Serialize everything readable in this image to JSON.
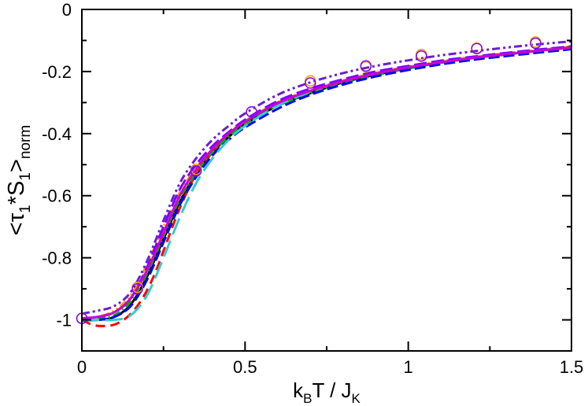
{
  "chart_data": {
    "type": "line",
    "title": "",
    "xlabel": {
      "main": "k",
      "sub1": "B",
      "mid": "T / J",
      "sub2": "K"
    },
    "ylabel": {
      "open": "<τ",
      "sub1": "1",
      "mid": "*S",
      "sub2": "1",
      "close": ">",
      "sub3": "norm"
    },
    "xlim": [
      0,
      1.5
    ],
    "ylim": [
      -1.1,
      0
    ],
    "xticks": [
      0,
      0.5,
      1,
      1.5
    ],
    "xtick_labels": [
      "0",
      "0.5",
      "1",
      "1.5"
    ],
    "yticks": [
      0,
      -0.2,
      -0.4,
      -0.6,
      -0.8,
      -1
    ],
    "ytick_labels": [
      "0",
      "-0.2",
      "-0.4",
      "-0.6",
      "-0.8",
      "-1"
    ],
    "grid": false,
    "series": [
      {
        "name": "black solid",
        "color": "#000000",
        "dash": "",
        "x": [
          0,
          0.05,
          0.1,
          0.15,
          0.2,
          0.25,
          0.3,
          0.35,
          0.4,
          0.45,
          0.5,
          0.6,
          0.7,
          0.8,
          0.9,
          1.0,
          1.1,
          1.2,
          1.3,
          1.4,
          1.5
        ],
        "y": [
          -1.0,
          -1.0,
          -0.99,
          -0.95,
          -0.86,
          -0.74,
          -0.62,
          -0.53,
          -0.46,
          -0.41,
          -0.37,
          -0.31,
          -0.27,
          -0.235,
          -0.21,
          -0.19,
          -0.17,
          -0.155,
          -0.145,
          -0.132,
          -0.122
        ]
      },
      {
        "name": "red dashed",
        "color": "#ff0000",
        "dash": "12,7",
        "x": [
          0,
          0.03,
          0.06,
          0.1,
          0.14,
          0.18,
          0.22,
          0.26,
          0.3,
          0.35,
          0.4,
          0.45,
          0.5,
          0.6,
          0.7,
          0.8,
          0.9,
          1.0,
          1.1,
          1.2,
          1.3,
          1.4,
          1.5
        ],
        "y": [
          -1.0,
          -1.015,
          -1.02,
          -1.015,
          -0.99,
          -0.94,
          -0.86,
          -0.75,
          -0.64,
          -0.53,
          -0.46,
          -0.4,
          -0.36,
          -0.3,
          -0.26,
          -0.23,
          -0.205,
          -0.185,
          -0.168,
          -0.154,
          -0.142,
          -0.13,
          -0.12
        ]
      },
      {
        "name": "green dash-dot",
        "color": "#00b000",
        "dash": "10,4,2,4",
        "x": [
          0,
          0.05,
          0.1,
          0.15,
          0.2,
          0.25,
          0.3,
          0.35,
          0.4,
          0.45,
          0.5,
          0.6,
          0.7,
          0.8,
          0.9,
          1.0,
          1.1,
          1.2,
          1.3,
          1.4,
          1.5
        ],
        "y": [
          -0.995,
          -0.995,
          -0.985,
          -0.94,
          -0.85,
          -0.73,
          -0.61,
          -0.525,
          -0.46,
          -0.41,
          -0.37,
          -0.31,
          -0.27,
          -0.238,
          -0.212,
          -0.19,
          -0.172,
          -0.157,
          -0.145,
          -0.133,
          -0.123
        ]
      },
      {
        "name": "blue long-dash",
        "color": "#0000ff",
        "dash": "14,5",
        "x": [
          0,
          0.05,
          0.1,
          0.15,
          0.2,
          0.25,
          0.3,
          0.35,
          0.4,
          0.45,
          0.5,
          0.6,
          0.7,
          0.8,
          0.9,
          1.0,
          1.1,
          1.2,
          1.3,
          1.4,
          1.5
        ],
        "y": [
          -1.0,
          -1.0,
          -0.99,
          -0.955,
          -0.87,
          -0.75,
          -0.63,
          -0.54,
          -0.47,
          -0.42,
          -0.38,
          -0.32,
          -0.275,
          -0.242,
          -0.216,
          -0.195,
          -0.177,
          -0.162,
          -0.15,
          -0.139,
          -0.128
        ]
      },
      {
        "name": "orange dash-dot-dot",
        "color": "#ff9900",
        "dash": "10,4,2,4,2,4",
        "x": [
          0,
          0.05,
          0.1,
          0.15,
          0.2,
          0.25,
          0.3,
          0.35,
          0.4,
          0.45,
          0.5,
          0.6,
          0.7,
          0.8,
          0.9,
          1.0,
          1.1,
          1.2,
          1.3,
          1.4,
          1.5
        ],
        "y": [
          -0.995,
          -0.99,
          -0.97,
          -0.92,
          -0.82,
          -0.7,
          -0.59,
          -0.51,
          -0.45,
          -0.4,
          -0.36,
          -0.3,
          -0.26,
          -0.228,
          -0.204,
          -0.184,
          -0.167,
          -0.153,
          -0.141,
          -0.13,
          -0.12
        ]
      },
      {
        "name": "purple dashed",
        "color": "#7f00ff",
        "dash": "16,6",
        "x": [
          0,
          0.05,
          0.1,
          0.15,
          0.2,
          0.25,
          0.3,
          0.35,
          0.4,
          0.45,
          0.5,
          0.6,
          0.7,
          0.8,
          0.9,
          1.0,
          1.1,
          1.2,
          1.3,
          1.4,
          1.5
        ],
        "y": [
          -0.995,
          -0.99,
          -0.975,
          -0.93,
          -0.83,
          -0.7,
          -0.58,
          -0.5,
          -0.44,
          -0.395,
          -0.355,
          -0.295,
          -0.255,
          -0.225,
          -0.2,
          -0.182,
          -0.165,
          -0.152,
          -0.14,
          -0.129,
          -0.119
        ]
      },
      {
        "name": "purple dash-dot-dot",
        "color": "#6a1fd1",
        "dash": "10,4,3,4,3,4",
        "x": [
          0,
          0.05,
          0.1,
          0.15,
          0.2,
          0.25,
          0.3,
          0.35,
          0.4,
          0.45,
          0.5,
          0.6,
          0.7,
          0.8,
          0.9,
          1.0,
          1.1,
          1.2,
          1.3,
          1.4,
          1.5
        ],
        "y": [
          -0.98,
          -0.97,
          -0.955,
          -0.91,
          -0.81,
          -0.68,
          -0.56,
          -0.48,
          -0.42,
          -0.375,
          -0.335,
          -0.275,
          -0.235,
          -0.205,
          -0.182,
          -0.164,
          -0.148,
          -0.135,
          -0.123,
          -0.112,
          -0.103
        ]
      },
      {
        "name": "cyan long-dash",
        "color": "#33cccc",
        "dash": "22,8",
        "x": [
          0,
          0.05,
          0.1,
          0.15,
          0.2,
          0.25,
          0.3,
          0.35,
          0.4,
          0.45,
          0.5,
          0.6,
          0.7,
          0.8,
          0.9,
          1.0,
          1.1,
          1.2,
          1.3,
          1.4,
          1.5
        ],
        "y": [
          -1.0,
          -1.0,
          -1.0,
          -0.985,
          -0.92,
          -0.8,
          -0.67,
          -0.56,
          -0.48,
          -0.42,
          -0.375,
          -0.31,
          -0.265,
          -0.232,
          -0.207,
          -0.187,
          -0.17,
          -0.156,
          -0.144,
          -0.133,
          -0.123
        ]
      },
      {
        "name": "magenta solid",
        "color": "#cc00cc",
        "dash": "",
        "x": [
          0,
          0.05,
          0.1,
          0.15,
          0.2,
          0.25,
          0.3,
          0.35,
          0.4,
          0.45,
          0.5,
          0.6,
          0.7,
          0.8,
          0.9,
          1.0,
          1.1,
          1.2,
          1.3,
          1.4,
          1.5
        ],
        "y": [
          -0.995,
          -0.99,
          -0.975,
          -0.93,
          -0.84,
          -0.72,
          -0.6,
          -0.515,
          -0.45,
          -0.4,
          -0.362,
          -0.302,
          -0.262,
          -0.232,
          -0.207,
          -0.187,
          -0.17,
          -0.156,
          -0.144,
          -0.133,
          -0.123
        ]
      }
    ],
    "markers": [
      {
        "name": "orange circles",
        "color": "#ff9900",
        "x": [
          0.0,
          0.17,
          0.35,
          0.52,
          0.7,
          0.87,
          1.04,
          1.21,
          1.39
        ],
        "y": [
          -0.995,
          -0.895,
          -0.515,
          -0.33,
          -0.23,
          -0.185,
          -0.145,
          -0.125,
          -0.105
        ]
      },
      {
        "name": "purple circles",
        "color": "#7f00ff",
        "x": [
          0.0,
          0.17,
          0.35,
          0.52,
          0.7,
          0.87,
          1.04,
          1.21,
          1.39
        ],
        "y": [
          -0.995,
          -0.9,
          -0.52,
          -0.33,
          -0.237,
          -0.182,
          -0.15,
          -0.126,
          -0.109
        ]
      }
    ]
  }
}
